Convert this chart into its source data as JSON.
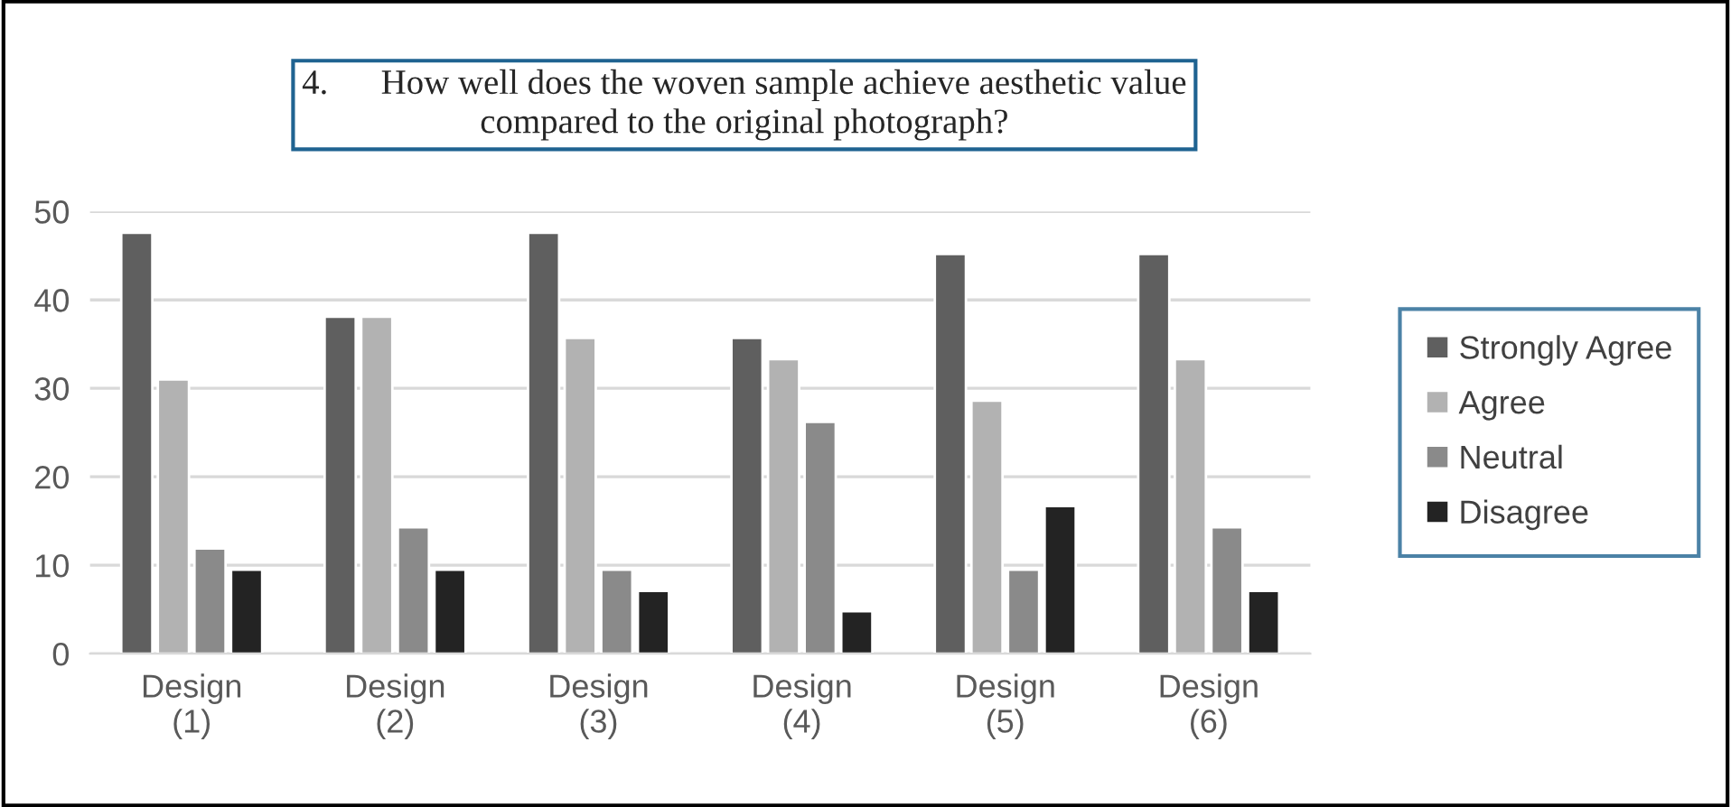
{
  "chart_data": {
    "type": "bar",
    "title": "4.      How well does the woven sample achieve aesthetic value\ncompared to the original photograph?",
    "categories": [
      "Design\n(1)",
      "Design\n(2)",
      "Design\n(3)",
      "Design\n(4)",
      "Design\n(5)",
      "Design\n(6)"
    ],
    "series": [
      {
        "name": "Strongly Agree",
        "color": "#5f5f5f",
        "values": [
          47.6,
          38.1,
          47.6,
          35.7,
          45.2,
          45.2
        ]
      },
      {
        "name": "Agree",
        "color": "#b2b2b2",
        "values": [
          31.0,
          38.1,
          35.7,
          33.3,
          28.6,
          33.3
        ]
      },
      {
        "name": "Neutral",
        "color": "#8a8a8a",
        "values": [
          11.9,
          14.3,
          9.5,
          26.2,
          9.5,
          14.3
        ]
      },
      {
        "name": "Disagree",
        "color": "#232323",
        "values": [
          9.5,
          9.5,
          7.1,
          4.8,
          16.7,
          7.1
        ]
      }
    ],
    "ylim": [
      0,
      50
    ],
    "yticks": [
      0,
      10,
      20,
      30,
      40,
      50
    ],
    "grid": "y",
    "legend": "right"
  }
}
